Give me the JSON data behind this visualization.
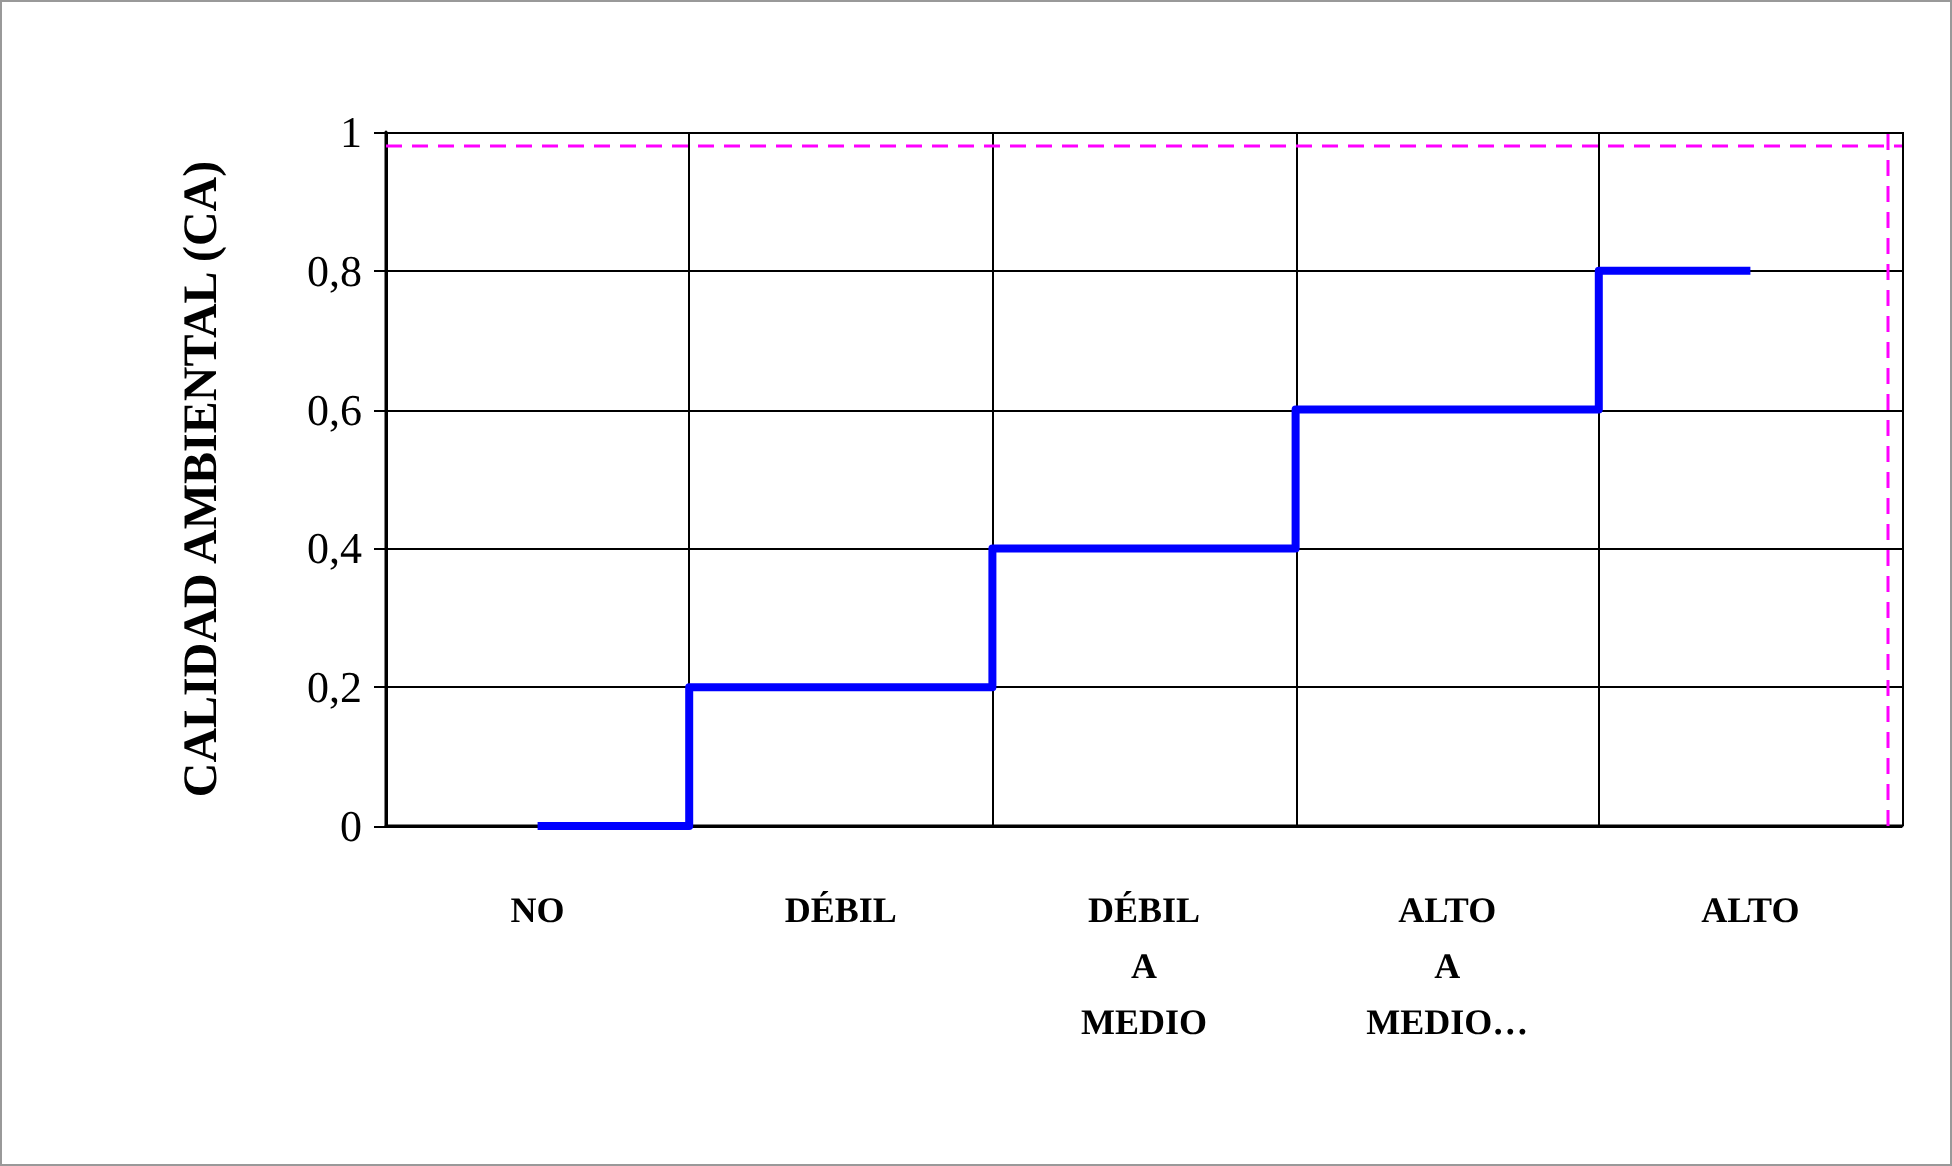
{
  "chart_data": {
    "type": "step",
    "ylabel": "CALIDAD AMBIENTAL (CA)",
    "categories": [
      "NO",
      "DÉBIL",
      "DÉBIL\nA\nMEDIO",
      "ALTO\nA\nMEDIO…",
      "ALTO"
    ],
    "series": [
      {
        "color": "#0000ff",
        "values": [
          0,
          0.2,
          0.4,
          0.6,
          0.8
        ]
      }
    ],
    "ylim": [
      0,
      1
    ],
    "yticks": [
      0,
      {
        "value": 0.2,
        "label": "0,2"
      },
      {
        "value": 0.4,
        "label": "0,4"
      },
      {
        "value": 0.6,
        "label": "0,6"
      },
      {
        "value": 0.8,
        "label": "0,8"
      },
      1
    ],
    "ref_lines": [
      {
        "axis": "y",
        "value": 0.98,
        "color": "#ff00ff",
        "line_style": "dashed"
      },
      {
        "axis": "x",
        "value": "ALTO",
        "color": "#ff00ff",
        "line_style": "dashed"
      }
    ],
    "grid": true,
    "legend": false,
    "marker": "none"
  }
}
